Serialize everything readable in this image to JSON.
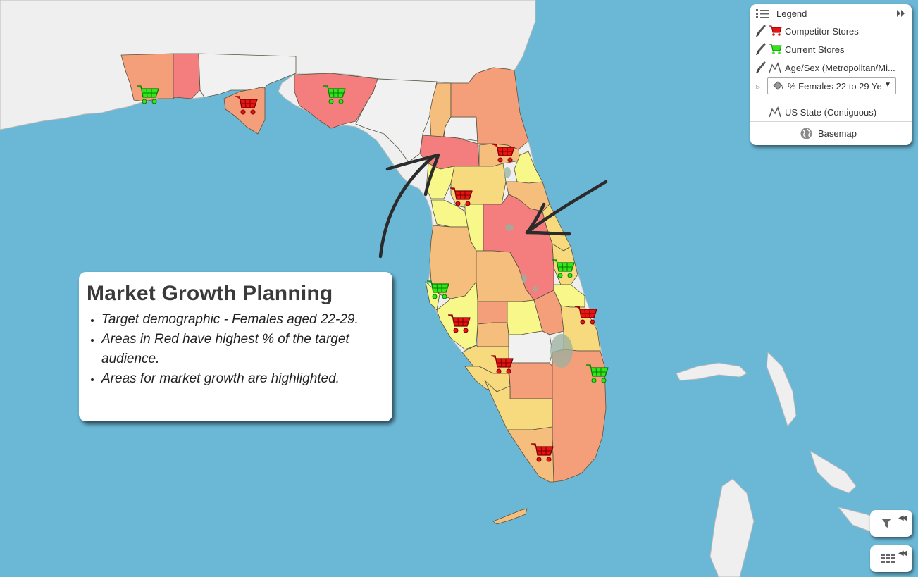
{
  "legend": {
    "title": "Legend",
    "items": [
      {
        "label": "Competitor Stores",
        "symbol": "red-cart-icon",
        "color": "#e81313"
      },
      {
        "label": "Current Stores",
        "symbol": "green-cart-icon",
        "color": "#2fe81c"
      },
      {
        "label": "Age/Sex (Metropolitan/Mi...",
        "symbol": "polygon-layer-icon"
      },
      {
        "label": "US State (Contiguous)",
        "symbol": "polygon-layer-icon"
      }
    ],
    "field_select": {
      "value": "% Females 22 to 29 Ye"
    },
    "basemap_label": "Basemap"
  },
  "info_card": {
    "title": "Market Growth Planning",
    "bullets": [
      "Target demographic - Females aged 22-29.",
      "Areas in Red have highest % of the target audience.",
      "Areas for market growth are highlighted."
    ]
  },
  "colors": {
    "water": "#6bb8d6",
    "land": "#efefef",
    "class_highest": "#f47d7d",
    "class_high": "#f59e7a",
    "class_mid": "#f6be7c",
    "class_low": "#f7da7e",
    "class_lowest": "#f7f78a",
    "no_data": "#f1f1f1"
  },
  "widgets": {
    "filter": "filter-icon",
    "table": "table-icon"
  }
}
